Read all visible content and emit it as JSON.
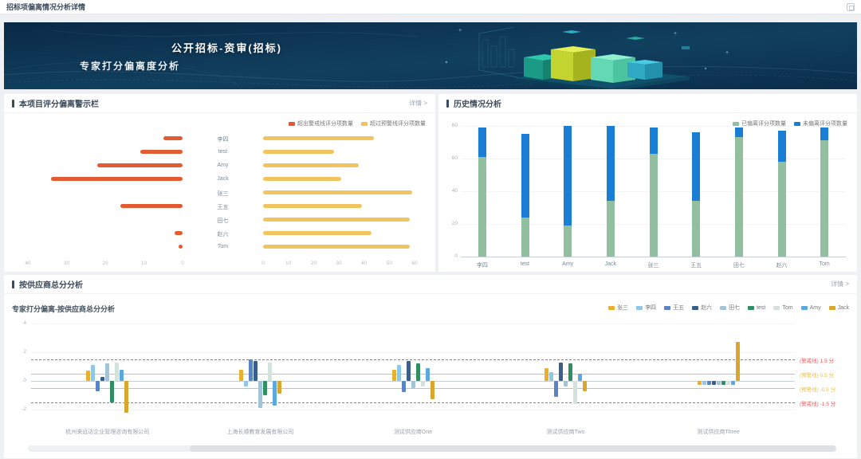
{
  "page": {
    "title": "招标项偏离情况分析详情"
  },
  "banner": {
    "title": "公开招标-资审(招标)",
    "subtitle": "专家打分偏离度分析"
  },
  "panels": {
    "warning": {
      "title": "本项目评分偏离警示栏",
      "more": "详情 >"
    },
    "history": {
      "title": "历史情况分析"
    },
    "supplier": {
      "title": "按供应商总分分析",
      "more": "详情 >"
    }
  },
  "chart_data": [
    {
      "id": "warning-mirror",
      "type": "bar",
      "layout": "horizontal-mirrored",
      "categories": [
        "李四",
        "test",
        "Amy",
        "Jack",
        "张三",
        "王五",
        "田七",
        "赵六",
        "Tom"
      ],
      "series": [
        {
          "name": "超出警戒线评分项数量",
          "side": "left",
          "color": "#e25b33",
          "values": [
            5,
            11,
            22,
            34,
            0,
            16,
            0,
            2,
            1
          ],
          "xlim": [
            0,
            40
          ],
          "ticks": [
            40,
            30,
            20,
            10,
            0
          ]
        },
        {
          "name": "超过预警线评分项数量",
          "side": "right",
          "color": "#f2c45f",
          "values": [
            44,
            28,
            38,
            31,
            59,
            39,
            58,
            43,
            58
          ],
          "xlim": [
            0,
            60
          ],
          "ticks": [
            0,
            10,
            20,
            30,
            40,
            50,
            60
          ]
        }
      ],
      "legend_position": "top-right",
      "grid": false
    },
    {
      "id": "history-stacked",
      "type": "bar",
      "layout": "vertical-stacked",
      "categories": [
        "李四",
        "test",
        "Amy",
        "Jack",
        "张三",
        "王五",
        "田七",
        "赵六",
        "Tom"
      ],
      "series": [
        {
          "name": "已偏离评分项数量",
          "color": "#92bfa0",
          "values": [
            61,
            24,
            19,
            34,
            63,
            34,
            73,
            58,
            71
          ]
        },
        {
          "name": "未偏离评分项数量",
          "color": "#1a7fd4",
          "values": [
            18,
            51,
            61,
            46,
            16,
            42,
            6,
            19,
            8
          ]
        }
      ],
      "ylim": [
        0,
        80
      ],
      "yticks": [
        80,
        60,
        40,
        20,
        0
      ],
      "legend_position": "top-right",
      "grid": true
    },
    {
      "id": "supplier-grouped",
      "type": "bar",
      "layout": "vertical-grouped",
      "title": "专家打分偏离-按供应商总分分析",
      "categories": [
        "杭州来远达企业管理咨询有限公司",
        "上海长顺教育发展有限公司",
        "测试供应商One",
        "测试供应商Two",
        "测试供应商Three"
      ],
      "series": [
        {
          "name": "张三",
          "color": "#e9b02e",
          "values": [
            0.7,
            0.8,
            0.8,
            0.9,
            -0.3
          ]
        },
        {
          "name": "李四",
          "color": "#8fc7e8",
          "values": [
            1.1,
            -0.4,
            1.1,
            0.6,
            -0.3
          ]
        },
        {
          "name": "王五",
          "color": "#5b84c4",
          "values": [
            -0.7,
            1.5,
            -0.8,
            -1.1,
            -0.3
          ]
        },
        {
          "name": "赵六",
          "color": "#3a5f8d",
          "values": [
            0.3,
            1.4,
            1.4,
            1.3,
            -0.3
          ]
        },
        {
          "name": "田七",
          "color": "#a3c3d9",
          "values": [
            1.2,
            -1.9,
            -0.5,
            -0.4,
            -0.3
          ]
        },
        {
          "name": "test",
          "color": "#2f8e62",
          "values": [
            -1.5,
            -1.0,
            1.2,
            1.2,
            -0.3
          ]
        },
        {
          "name": "Tom",
          "color": "#d4e2dc",
          "values": [
            1.3,
            1.3,
            -0.4,
            -1.6,
            -0.3
          ]
        },
        {
          "name": "Amy",
          "color": "#5aa9e0",
          "values": [
            0.8,
            -1.7,
            0.9,
            0.5,
            -0.3
          ]
        },
        {
          "name": "Jack",
          "color": "#d9a62e",
          "values": [
            -2.2,
            -0.9,
            -1.3,
            -0.7,
            2.7
          ]
        }
      ],
      "ylim": [
        -2.5,
        4.4
      ],
      "yticks": [
        4,
        2,
        0,
        -2
      ],
      "thresholds": [
        {
          "label": "(警戒线) 1.5 分",
          "value": 1.5,
          "color": "#e05c5c",
          "style": "dashed"
        },
        {
          "label": "(预警线) 0.5 分",
          "value": 0.5,
          "color": "#e6c054",
          "style": "solid"
        },
        {
          "label": "(预警线) -0.5 分",
          "value": -0.5,
          "color": "#e6c054",
          "style": "solid"
        },
        {
          "label": "(警戒线) -1.5 分",
          "value": -1.5,
          "color": "#e05c5c",
          "style": "dashed"
        }
      ],
      "legend_position": "top-right",
      "grid": true
    }
  ]
}
